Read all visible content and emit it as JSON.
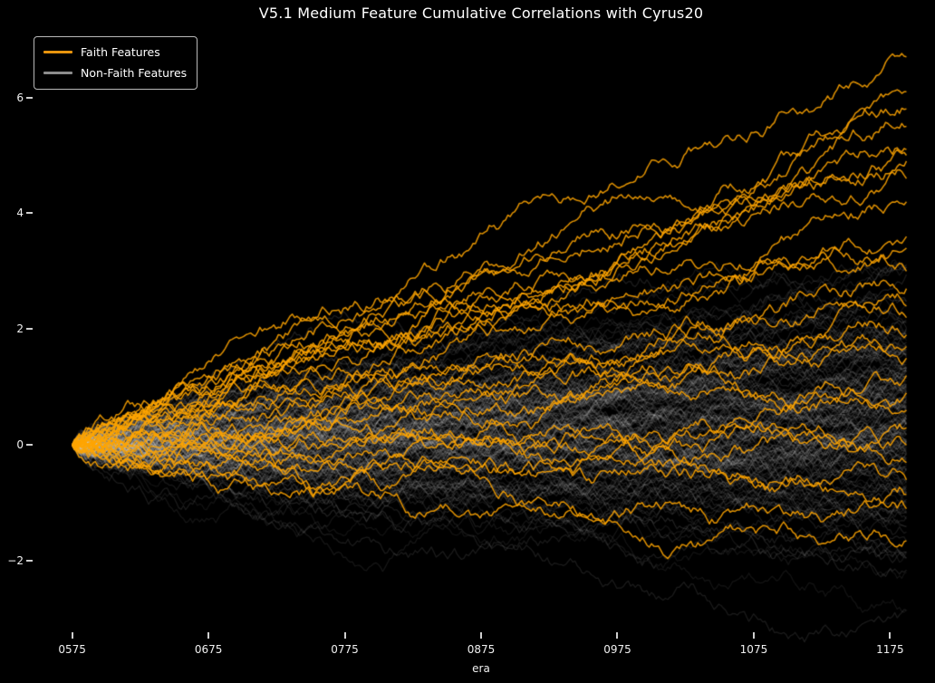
{
  "title": "V5.1 Medium Feature Cumulative Correlations with Cyrus20",
  "colors": {
    "background": "#000000",
    "text": "#ffffff",
    "tick": "#cfcfcf",
    "faith_accent": "#ffa500",
    "faith_legend_swatch": "#e8940d",
    "non_faith_legend_swatch": "#8c8c8c"
  },
  "legend": {
    "items": [
      {
        "label": "Faith Features",
        "color": "#e8940d"
      },
      {
        "label": "Non-Faith Features",
        "color": "#8c8c8c"
      }
    ]
  },
  "chart_data": {
    "type": "line",
    "title": "V5.1 Medium Feature Cumulative Correlations with Cyrus20",
    "xlabel": "era",
    "ylabel": "",
    "xlim": [
      546,
      1192
    ],
    "ylim": [
      -3.2,
      7.15
    ],
    "xticks": [
      {
        "value": 575,
        "label": "0575"
      },
      {
        "value": 675,
        "label": "0675"
      },
      {
        "value": 775,
        "label": "0775"
      },
      {
        "value": 875,
        "label": "0875"
      },
      {
        "value": 975,
        "label": "0975"
      },
      {
        "value": 1075,
        "label": "1075"
      },
      {
        "value": 1175,
        "label": "1175"
      }
    ],
    "yticks": [
      {
        "value": 6,
        "label": "6"
      },
      {
        "value": 4,
        "label": "4"
      },
      {
        "value": 2,
        "label": "2"
      },
      {
        "value": 0,
        "label": "0"
      },
      {
        "value": -2,
        "label": "−2"
      }
    ],
    "grid": false,
    "legend_position": "upper left",
    "description": "Cumulative correlation random-walk traces; every series starts at value 0 at era 575 and wanders to its final value at era ~1187, forming a fan/cloud.",
    "series": {
      "start": {
        "era": 575,
        "value": 0
      },
      "end_era": 1187,
      "faith": {
        "name": "Faith Features",
        "color": "#ffa500",
        "alpha": 0.88,
        "line_width": 1.5,
        "count": 28,
        "final_values": [
          6.7,
          6.1,
          5.8,
          5.5,
          5.1,
          5.0,
          4.9,
          4.6,
          4.2,
          3.6,
          3.4,
          3.0,
          2.7,
          2.4,
          2.2,
          1.9,
          1.7,
          1.5,
          1.2,
          0.9,
          0.6,
          0.3,
          0.0,
          -0.3,
          -0.6,
          -0.85,
          -1.1,
          -1.65
        ]
      },
      "non_faith": {
        "name": "Non-Faith Features",
        "color": "#ffffff",
        "alpha": 0.095,
        "line_width": 1.25,
        "count": 170,
        "final_distribution": {
          "mean": 0.45,
          "sd": 1.15,
          "min": -2.85,
          "max": 3.8
        }
      }
    }
  }
}
